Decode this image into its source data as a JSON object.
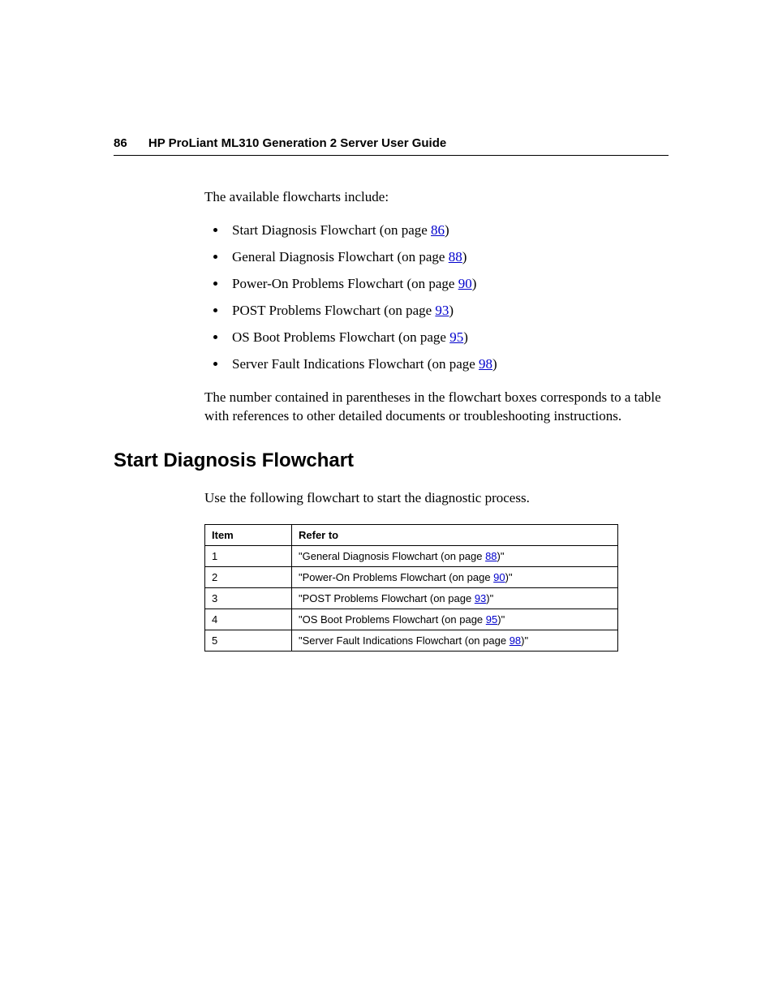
{
  "header": {
    "page_number": "86",
    "title": "HP ProLiant ML310 Generation 2 Server User Guide"
  },
  "intro_text": "The available flowcharts include:",
  "flowchart_list": [
    {
      "prefix": "Start Diagnosis Flowchart (on page ",
      "page": "86",
      "suffix": ")"
    },
    {
      "prefix": "General Diagnosis Flowchart (on page ",
      "page": "88",
      "suffix": ")"
    },
    {
      "prefix": "Power-On Problems Flowchart (on page ",
      "page": "90",
      "suffix": ")"
    },
    {
      "prefix": "POST Problems Flowchart (on page ",
      "page": "93",
      "suffix": ")"
    },
    {
      "prefix": "OS Boot Problems Flowchart (on page ",
      "page": "95",
      "suffix": ")"
    },
    {
      "prefix": "Server Fault Indications Flowchart (on page ",
      "page": "98",
      "suffix": ")"
    }
  ],
  "after_list_text": "The number contained in parentheses in the flowchart boxes corresponds to a table with references to other detailed documents or troubleshooting instructions.",
  "section": {
    "heading": "Start Diagnosis Flowchart",
    "intro": "Use the following flowchart to start the diagnostic process.",
    "table": {
      "columns": [
        "Item",
        "Refer to"
      ],
      "rows": [
        {
          "item": "1",
          "prefix": "\"General Diagnosis Flowchart (on page ",
          "page": "88",
          "suffix": ")\""
        },
        {
          "item": "2",
          "prefix": "\"Power-On Problems Flowchart (on page ",
          "page": "90",
          "suffix": ")\""
        },
        {
          "item": "3",
          "prefix": "\"POST Problems Flowchart (on page ",
          "page": "93",
          "suffix": ")\""
        },
        {
          "item": "4",
          "prefix": "\"OS Boot Problems Flowchart (on page ",
          "page": "95",
          "suffix": ")\""
        },
        {
          "item": "5",
          "prefix": "\"Server Fault Indications Flowchart (on page ",
          "page": "98",
          "suffix": ")\""
        }
      ]
    }
  },
  "link_color": "#0000cc"
}
